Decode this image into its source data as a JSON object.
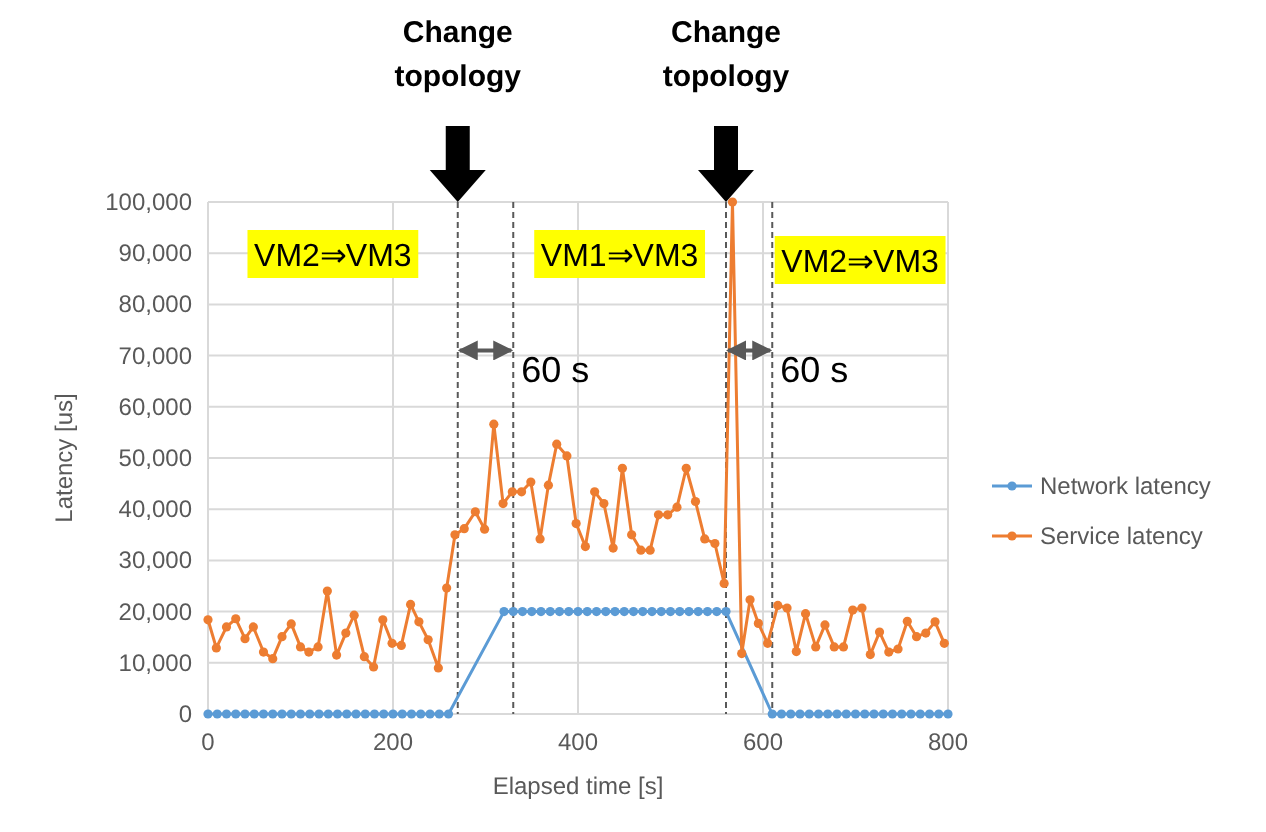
{
  "chart_data": {
    "type": "line",
    "xlabel": "Elapsed time [s]",
    "ylabel": "Latency [us]",
    "xlim": [
      0,
      800
    ],
    "xticks": [
      0,
      200,
      400,
      600,
      800
    ],
    "ylim": [
      0,
      100000
    ],
    "yticks": [
      {
        "value": 0,
        "label": "0"
      },
      {
        "value": 10000,
        "label": "10,000"
      },
      {
        "value": 20000,
        "label": "20,000"
      },
      {
        "value": 30000,
        "label": "30,000"
      },
      {
        "value": 40000,
        "label": "40,000"
      },
      {
        "value": 50000,
        "label": "50,000"
      },
      {
        "value": 60000,
        "label": "60,000"
      },
      {
        "value": 70000,
        "label": "70,000"
      },
      {
        "value": 80000,
        "label": "80,000"
      },
      {
        "value": 90000,
        "label": "90,000"
      },
      {
        "value": 100000,
        "label": "100,000"
      }
    ],
    "grid": true,
    "legend": "right",
    "marker": "circle",
    "line_style": "solid",
    "series": [
      {
        "name": "Network latency",
        "color": "#5b9bd5",
        "x": [
          0,
          10,
          20,
          30,
          40,
          50,
          60,
          70,
          80,
          90,
          100,
          110,
          120,
          130,
          140,
          150,
          160,
          170,
          180,
          190,
          200,
          210,
          220,
          230,
          240,
          250,
          260,
          320,
          330,
          340,
          350,
          360,
          370,
          380,
          390,
          400,
          410,
          420,
          430,
          440,
          450,
          460,
          470,
          480,
          490,
          500,
          510,
          520,
          530,
          540,
          550,
          560,
          610,
          620,
          630,
          640,
          650,
          660,
          670,
          680,
          690,
          700,
          710,
          720,
          730,
          740,
          750,
          760,
          770,
          780,
          790,
          800
        ],
        "values": [
          0,
          0,
          0,
          0,
          0,
          0,
          0,
          0,
          0,
          0,
          0,
          0,
          0,
          0,
          0,
          0,
          0,
          0,
          0,
          0,
          0,
          0,
          0,
          0,
          0,
          0,
          0,
          20000,
          20000,
          20000,
          20000,
          20000,
          20000,
          20000,
          20000,
          20000,
          20000,
          20000,
          20000,
          20000,
          20000,
          20000,
          20000,
          20000,
          20000,
          20000,
          20000,
          20000,
          20000,
          20000,
          20000,
          20000,
          0,
          0,
          0,
          0,
          0,
          0,
          0,
          0,
          0,
          0,
          0,
          0,
          0,
          0,
          0,
          0,
          0,
          0,
          0,
          0
        ]
      },
      {
        "name": "Service latency",
        "color": "#ed7d31",
        "x": [
          0,
          9,
          20,
          30,
          40,
          49,
          60,
          70,
          80,
          90,
          100,
          109,
          119,
          129,
          139,
          149,
          158,
          169,
          179,
          189,
          199,
          209,
          219,
          228,
          238,
          249,
          258,
          267,
          277,
          289,
          299,
          309,
          319,
          329,
          339,
          349,
          359,
          368,
          377,
          388,
          398,
          408,
          418,
          428,
          438,
          448,
          458,
          468,
          478,
          487,
          497,
          507,
          517,
          527,
          537,
          548,
          558,
          567,
          577,
          586,
          595,
          605,
          616,
          626,
          636,
          646,
          657,
          667,
          677,
          687,
          697,
          707,
          716,
          726,
          736,
          746,
          756,
          766,
          776,
          786,
          796
        ],
        "values": [
          18400,
          12900,
          17000,
          18600,
          14700,
          17000,
          12100,
          10800,
          15100,
          17600,
          13100,
          12100,
          13100,
          24000,
          11500,
          15800,
          19300,
          11200,
          9200,
          18400,
          13800,
          13400,
          21400,
          18000,
          14500,
          9000,
          24600,
          35000,
          36200,
          39500,
          36100,
          56600,
          41100,
          43400,
          43400,
          45300,
          34200,
          44700,
          52700,
          50400,
          37200,
          32700,
          43400,
          41100,
          32400,
          48000,
          35000,
          32000,
          32000,
          38900,
          38900,
          40400,
          48000,
          41500,
          34200,
          33300,
          25500,
          100000,
          11800,
          22300,
          17700,
          13800,
          21200,
          20700,
          12200,
          19600,
          13100,
          17400,
          13100,
          13100,
          20300,
          20700,
          11600,
          16000,
          12100,
          12700,
          18100,
          15100,
          15800,
          18000,
          13800
        ]
      }
    ],
    "ref_lines": [
      {
        "axis": "x",
        "value": 270,
        "color": "#595959",
        "line_style": "dashed"
      },
      {
        "axis": "x",
        "value": 330,
        "color": "#595959",
        "line_style": "dashed"
      },
      {
        "axis": "x",
        "value": 560,
        "color": "#595959",
        "line_style": "dashed"
      },
      {
        "axis": "x",
        "value": 610,
        "color": "#595959",
        "line_style": "dashed"
      }
    ],
    "annotations": [
      "Change topology",
      "Change topology",
      "VM2⇒VM3",
      "VM1⇒VM3",
      "VM2⇒VM3",
      {
        "text": "60 s",
        "x": 330,
        "y": 71000
      },
      {
        "text": "60 s",
        "x": 610,
        "y": 71000
      }
    ]
  }
}
